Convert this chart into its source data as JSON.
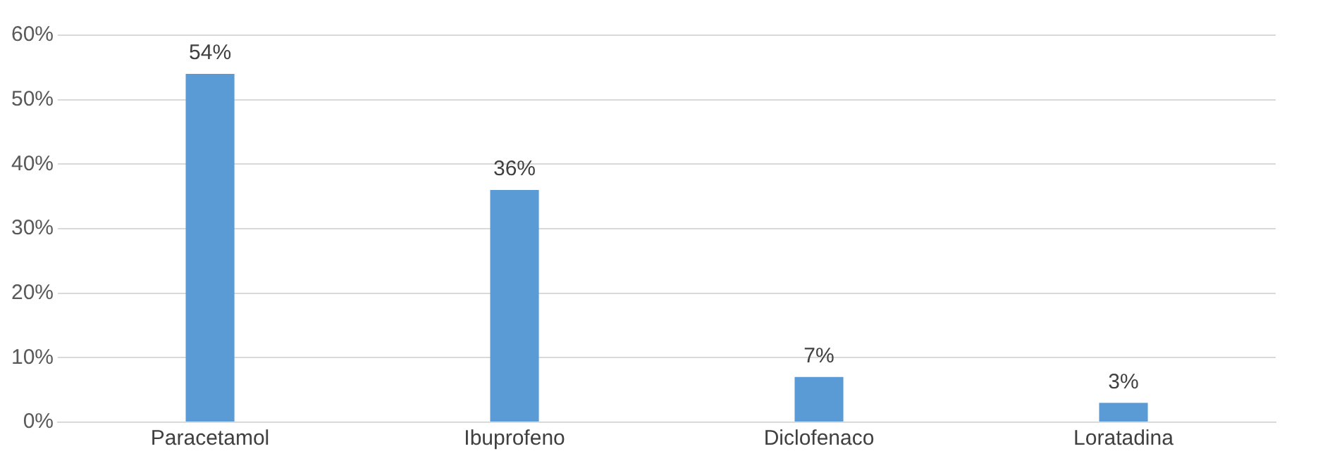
{
  "chart_data": {
    "type": "bar",
    "categories": [
      "Paracetamol",
      "Ibuprofeno",
      "Diclofenaco",
      "Loratadina"
    ],
    "values": [
      54,
      36,
      7,
      3
    ],
    "color": "#5b9bd5",
    "value_labels": [
      "54%",
      "36%",
      "7%",
      "3%"
    ],
    "ylim": [
      0,
      60
    ],
    "yticks": [
      {
        "value": 0,
        "label": "0%"
      },
      {
        "value": 10,
        "label": "10%"
      },
      {
        "value": 20,
        "label": "20%"
      },
      {
        "value": 30,
        "label": "30%"
      },
      {
        "value": 40,
        "label": "40%"
      },
      {
        "value": 50,
        "label": "50%"
      },
      {
        "value": 60,
        "label": "60%"
      }
    ],
    "grid": "y",
    "legend": false
  }
}
